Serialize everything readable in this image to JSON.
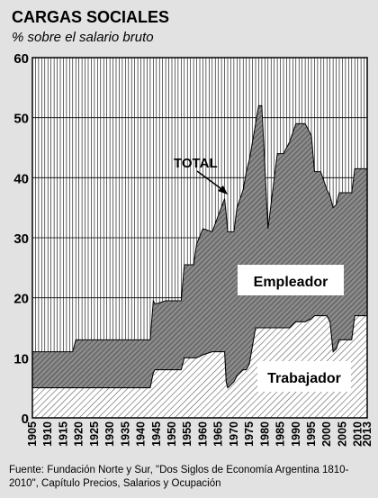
{
  "chart_data": {
    "type": "area",
    "title": "CARGAS SOCIALES",
    "subtitle": "% sobre el salario bruto",
    "xlim": [
      1905,
      2013
    ],
    "ylim": [
      0,
      60
    ],
    "yticks": [
      0,
      10,
      20,
      30,
      40,
      50,
      60
    ],
    "xticks": [
      "1905",
      "1910",
      "1915",
      "1920",
      "1925",
      "1930",
      "1935",
      "1940",
      "1945",
      "1950",
      "1955",
      "1960",
      "1965",
      "1970",
      "1975",
      "1980",
      "1985",
      "1990",
      "1995",
      "2000",
      "2005",
      "2010",
      "2013"
    ],
    "grid": true,
    "stacked": true,
    "series": [
      {
        "name": "Trabajador",
        "x": [
          1905,
          1943,
          1944,
          1944.5,
          1945,
          1948,
          1951,
          1953,
          1954,
          1957,
          1958,
          1960,
          1963,
          1967,
          1967.5,
          1968,
          1970,
          1971,
          1972,
          1973,
          1974,
          1975,
          1977,
          1978,
          1979,
          1981,
          1984,
          1986,
          1988,
          1990,
          1992,
          1993,
          1995,
          1996,
          1998,
          2000,
          2001,
          2002,
          2003,
          2004,
          2006,
          2007,
          2008,
          2009,
          2010,
          2012,
          2013
        ],
        "values": [
          5,
          5,
          7.5,
          8,
          8,
          8,
          8,
          8,
          10,
          10,
          10,
          10.5,
          11,
          11,
          6,
          5,
          6,
          7,
          7.5,
          8,
          8,
          9,
          15,
          15,
          15,
          15,
          15,
          15,
          15,
          16,
          16,
          16,
          16.5,
          17,
          17,
          17,
          16,
          11,
          11.5,
          13,
          13,
          13,
          13,
          17,
          17,
          17,
          17
        ]
      },
      {
        "name": "Empleador",
        "x": [
          1905,
          1918,
          1919,
          1943,
          1944,
          1944.5,
          1945,
          1948,
          1951,
          1953,
          1954,
          1957,
          1958,
          1960,
          1963,
          1967,
          1967.5,
          1968,
          1970,
          1971,
          1972,
          1973,
          1974,
          1975,
          1977,
          1978,
          1979,
          1981,
          1984,
          1986,
          1988,
          1990,
          1992,
          1993,
          1995,
          1996,
          1998,
          2000,
          2001,
          2002,
          2003,
          2004,
          2006,
          2007,
          2008,
          2009,
          2010,
          2012,
          2013
        ],
        "values": [
          6,
          6,
          8,
          8,
          12,
          11,
          11,
          11.5,
          11.5,
          11.5,
          15.5,
          15.5,
          19,
          21,
          20,
          25.5,
          28,
          26,
          25,
          28,
          29,
          30,
          33,
          34,
          34,
          37,
          37,
          16.5,
          29,
          29,
          31,
          33,
          33,
          33,
          30.5,
          24,
          24,
          21,
          21,
          24,
          24,
          24.5,
          24.5,
          24.5,
          24.5,
          24.5,
          24.5,
          24.5,
          24.5
        ]
      }
    ],
    "labels": {
      "total": "TOTAL",
      "empleador": "Empleador",
      "trabajador": "Trabajador"
    }
  },
  "source": "Fuente: Fundación Norte y Sur,  \"Dos Siglos de Economía Argentina 1810-2010\", Capítulo Precios, Salarios y Ocupación"
}
